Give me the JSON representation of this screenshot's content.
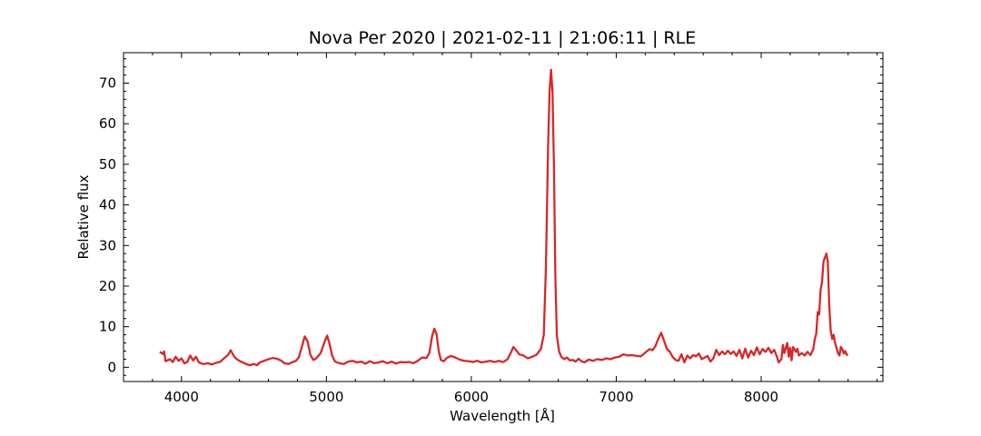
{
  "chart_data": {
    "type": "line",
    "title": "Nova Per 2020 | 2021-02-11 | 21:06:11 | RLE",
    "xlabel": "Wavelength [Å]",
    "ylabel": "Relative flux",
    "xlim": [
      3600,
      8840
    ],
    "ylim": [
      -3.5,
      77.5
    ],
    "xticks": [
      4000,
      5000,
      6000,
      7000,
      8000
    ],
    "yticks": [
      0,
      10,
      20,
      30,
      40,
      50,
      60,
      70
    ],
    "grid": false,
    "legend": "none",
    "series": [
      {
        "color": "#d62728",
        "points": [
          [
            3850,
            3.8
          ],
          [
            3870,
            3.3
          ],
          [
            3880,
            3.9
          ],
          [
            3890,
            1.5
          ],
          [
            3920,
            2.0
          ],
          [
            3940,
            1.3
          ],
          [
            3960,
            2.6
          ],
          [
            3980,
            1.6
          ],
          [
            4000,
            2.2
          ],
          [
            4020,
            1.0
          ],
          [
            4040,
            1.3
          ],
          [
            4060,
            2.9
          ],
          [
            4080,
            1.7
          ],
          [
            4100,
            2.6
          ],
          [
            4120,
            1.2
          ],
          [
            4150,
            0.8
          ],
          [
            4180,
            1.0
          ],
          [
            4210,
            0.7
          ],
          [
            4240,
            1.1
          ],
          [
            4270,
            1.4
          ],
          [
            4290,
            2.1
          ],
          [
            4320,
            3.0
          ],
          [
            4340,
            4.2
          ],
          [
            4360,
            2.8
          ],
          [
            4380,
            2.0
          ],
          [
            4410,
            1.4
          ],
          [
            4440,
            0.9
          ],
          [
            4470,
            0.5
          ],
          [
            4500,
            0.8
          ],
          [
            4520,
            0.5
          ],
          [
            4540,
            1.2
          ],
          [
            4570,
            1.6
          ],
          [
            4600,
            2.0
          ],
          [
            4630,
            2.3
          ],
          [
            4660,
            2.1
          ],
          [
            4690,
            1.6
          ],
          [
            4710,
            1.0
          ],
          [
            4740,
            0.8
          ],
          [
            4760,
            1.2
          ],
          [
            4790,
            1.6
          ],
          [
            4810,
            2.5
          ],
          [
            4830,
            5.0
          ],
          [
            4850,
            7.6
          ],
          [
            4870,
            6.4
          ],
          [
            4890,
            3.0
          ],
          [
            4910,
            1.8
          ],
          [
            4930,
            2.2
          ],
          [
            4960,
            3.5
          ],
          [
            4990,
            6.5
          ],
          [
            5005,
            7.8
          ],
          [
            5020,
            6.0
          ],
          [
            5040,
            2.8
          ],
          [
            5060,
            1.4
          ],
          [
            5090,
            1.0
          ],
          [
            5120,
            0.8
          ],
          [
            5150,
            1.4
          ],
          [
            5180,
            1.6
          ],
          [
            5210,
            1.2
          ],
          [
            5240,
            1.4
          ],
          [
            5270,
            0.9
          ],
          [
            5300,
            1.5
          ],
          [
            5330,
            1.0
          ],
          [
            5360,
            1.2
          ],
          [
            5390,
            1.5
          ],
          [
            5420,
            1.0
          ],
          [
            5450,
            1.4
          ],
          [
            5480,
            0.9
          ],
          [
            5510,
            1.3
          ],
          [
            5540,
            1.2
          ],
          [
            5570,
            1.3
          ],
          [
            5600,
            1.0
          ],
          [
            5630,
            1.6
          ],
          [
            5660,
            2.4
          ],
          [
            5690,
            2.3
          ],
          [
            5710,
            3.5
          ],
          [
            5730,
            7.8
          ],
          [
            5745,
            9.5
          ],
          [
            5760,
            8.2
          ],
          [
            5775,
            4.0
          ],
          [
            5790,
            1.8
          ],
          [
            5810,
            1.5
          ],
          [
            5830,
            2.3
          ],
          [
            5860,
            2.8
          ],
          [
            5890,
            2.4
          ],
          [
            5920,
            1.9
          ],
          [
            5950,
            1.6
          ],
          [
            5980,
            1.5
          ],
          [
            6010,
            1.3
          ],
          [
            6040,
            1.6
          ],
          [
            6070,
            1.2
          ],
          [
            6100,
            1.4
          ],
          [
            6130,
            1.6
          ],
          [
            6160,
            1.3
          ],
          [
            6190,
            1.6
          ],
          [
            6220,
            1.3
          ],
          [
            6250,
            2.0
          ],
          [
            6270,
            3.4
          ],
          [
            6290,
            5.0
          ],
          [
            6310,
            4.2
          ],
          [
            6330,
            3.2
          ],
          [
            6360,
            2.9
          ],
          [
            6390,
            2.2
          ],
          [
            6420,
            2.6
          ],
          [
            6450,
            3.1
          ],
          [
            6480,
            4.5
          ],
          [
            6500,
            8.0
          ],
          [
            6515,
            25.0
          ],
          [
            6530,
            55.0
          ],
          [
            6540,
            68.0
          ],
          [
            6550,
            73.3
          ],
          [
            6560,
            68.0
          ],
          [
            6570,
            50.0
          ],
          [
            6580,
            22.0
          ],
          [
            6590,
            8.0
          ],
          [
            6605,
            4.0
          ],
          [
            6620,
            2.6
          ],
          [
            6640,
            2.0
          ],
          [
            6660,
            2.4
          ],
          [
            6680,
            1.7
          ],
          [
            6700,
            1.8
          ],
          [
            6720,
            1.4
          ],
          [
            6740,
            2.1
          ],
          [
            6760,
            1.5
          ],
          [
            6780,
            1.2
          ],
          [
            6810,
            1.9
          ],
          [
            6840,
            1.6
          ],
          [
            6870,
            2.0
          ],
          [
            6900,
            1.8
          ],
          [
            6930,
            2.2
          ],
          [
            6960,
            2.0
          ],
          [
            6990,
            2.4
          ],
          [
            7020,
            2.6
          ],
          [
            7050,
            3.2
          ],
          [
            7080,
            2.9
          ],
          [
            7110,
            3.0
          ],
          [
            7140,
            2.8
          ],
          [
            7170,
            2.7
          ],
          [
            7200,
            3.6
          ],
          [
            7230,
            4.5
          ],
          [
            7250,
            4.2
          ],
          [
            7270,
            5.2
          ],
          [
            7290,
            7.0
          ],
          [
            7310,
            8.5
          ],
          [
            7330,
            6.5
          ],
          [
            7350,
            4.5
          ],
          [
            7370,
            3.8
          ],
          [
            7390,
            2.5
          ],
          [
            7410,
            1.8
          ],
          [
            7430,
            1.6
          ],
          [
            7450,
            3.2
          ],
          [
            7470,
            1.2
          ],
          [
            7490,
            2.9
          ],
          [
            7510,
            2.2
          ],
          [
            7530,
            3.0
          ],
          [
            7550,
            2.7
          ],
          [
            7570,
            3.4
          ],
          [
            7590,
            2.0
          ],
          [
            7610,
            2.4
          ],
          [
            7630,
            2.8
          ],
          [
            7650,
            1.4
          ],
          [
            7670,
            2.2
          ],
          [
            7690,
            4.3
          ],
          [
            7710,
            3.0
          ],
          [
            7730,
            3.9
          ],
          [
            7750,
            3.2
          ],
          [
            7770,
            4.1
          ],
          [
            7790,
            3.3
          ],
          [
            7810,
            3.9
          ],
          [
            7830,
            2.8
          ],
          [
            7850,
            4.3
          ],
          [
            7870,
            2.2
          ],
          [
            7890,
            4.6
          ],
          [
            7910,
            2.4
          ],
          [
            7930,
            4.1
          ],
          [
            7950,
            3.0
          ],
          [
            7970,
            4.9
          ],
          [
            7990,
            3.2
          ],
          [
            8010,
            4.5
          ],
          [
            8030,
            3.8
          ],
          [
            8050,
            4.8
          ],
          [
            8070,
            3.5
          ],
          [
            8090,
            4.3
          ],
          [
            8110,
            2.5
          ],
          [
            8120,
            1.2
          ],
          [
            8140,
            2.0
          ],
          [
            8150,
            5.5
          ],
          [
            8160,
            3.5
          ],
          [
            8180,
            6.0
          ],
          [
            8190,
            2.6
          ],
          [
            8200,
            4.8
          ],
          [
            8210,
            1.7
          ],
          [
            8220,
            5.0
          ],
          [
            8240,
            3.8
          ],
          [
            8250,
            4.6
          ],
          [
            8260,
            2.9
          ],
          [
            8280,
            3.5
          ],
          [
            8300,
            2.9
          ],
          [
            8320,
            3.8
          ],
          [
            8340,
            3.0
          ],
          [
            8360,
            4.5
          ],
          [
            8370,
            7.0
          ],
          [
            8380,
            8.2
          ],
          [
            8390,
            13.6
          ],
          [
            8400,
            13.0
          ],
          [
            8410,
            19.0
          ],
          [
            8420,
            21.0
          ],
          [
            8430,
            26.0
          ],
          [
            8440,
            27.0
          ],
          [
            8450,
            28.0
          ],
          [
            8460,
            26.0
          ],
          [
            8470,
            15.0
          ],
          [
            8480,
            9.0
          ],
          [
            8490,
            7.0
          ],
          [
            8500,
            8.0
          ],
          [
            8510,
            6.0
          ],
          [
            8520,
            4.8
          ],
          [
            8530,
            3.5
          ],
          [
            8540,
            2.9
          ],
          [
            8550,
            5.0
          ],
          [
            8560,
            4.5
          ],
          [
            8570,
            3.4
          ],
          [
            8580,
            4.0
          ],
          [
            8590,
            3.1
          ],
          [
            8600,
            3.0
          ]
        ]
      }
    ]
  }
}
